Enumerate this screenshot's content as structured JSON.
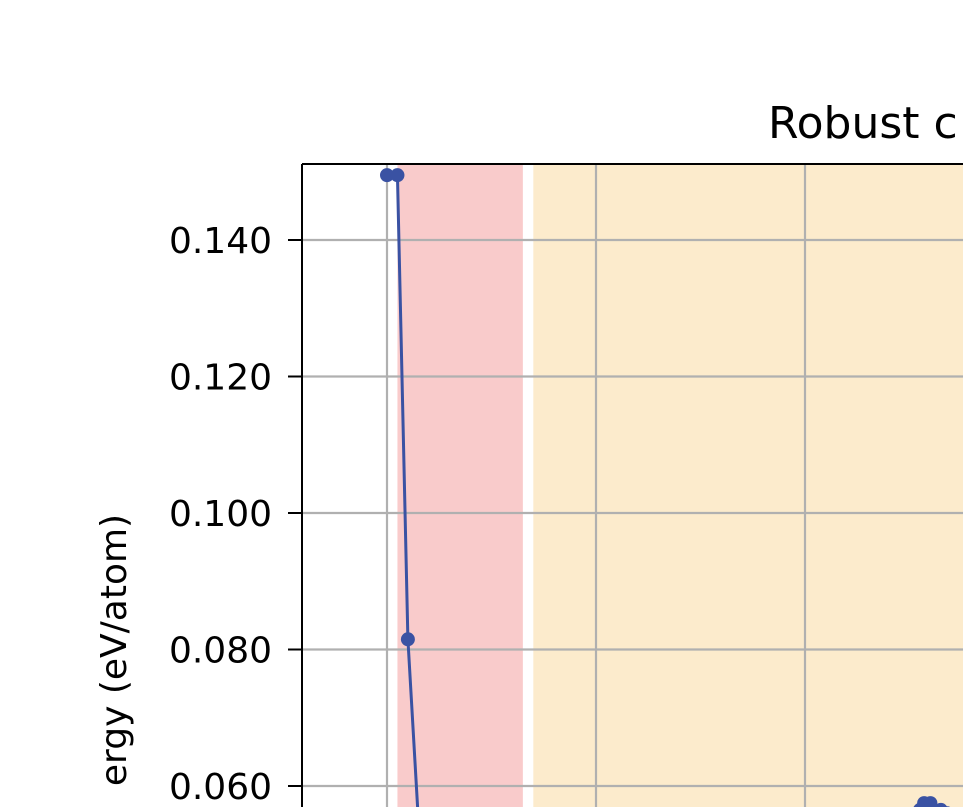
{
  "chart_data": {
    "type": "line",
    "title": "Robust c",
    "xlabel": "",
    "ylabel": "ergy (eV/atom)",
    "ylim": [
      0.055,
      0.151
    ],
    "xlim": [
      0,
      3.2
    ],
    "yticks": [
      {
        "value": 0.14,
        "label": "0.140"
      },
      {
        "value": 0.12,
        "label": "0.120"
      },
      {
        "value": 0.1,
        "label": "0.100"
      },
      {
        "value": 0.08,
        "label": "0.080"
      },
      {
        "value": 0.06,
        "label": "0.060"
      }
    ],
    "xgrid": [
      0.4,
      1.4,
      2.4,
      3.4
    ],
    "grid": true,
    "bands": [
      {
        "from": 0.45,
        "to": 1.05,
        "color": "#f9cbcb"
      },
      {
        "from": 1.1,
        "to": 3.2,
        "color": "#fcebcc"
      }
    ],
    "series": [
      {
        "color": "#3a52a3",
        "points": [
          {
            "x": 0.4,
            "y": 0.1495
          },
          {
            "x": 0.45,
            "y": 0.1495
          },
          {
            "x": 0.5,
            "y": 0.0815
          },
          {
            "x": 0.55,
            "y": 0.055
          }
        ]
      },
      {
        "color": "#3a52a3",
        "points": [
          {
            "x": 2.97,
            "y": 0.0575
          },
          {
            "x": 3.0,
            "y": 0.0575
          },
          {
            "x": 3.05,
            "y": 0.0565
          },
          {
            "x": 2.95,
            "y": 0.0565
          },
          {
            "x": 3.08,
            "y": 0.056
          }
        ]
      }
    ]
  }
}
